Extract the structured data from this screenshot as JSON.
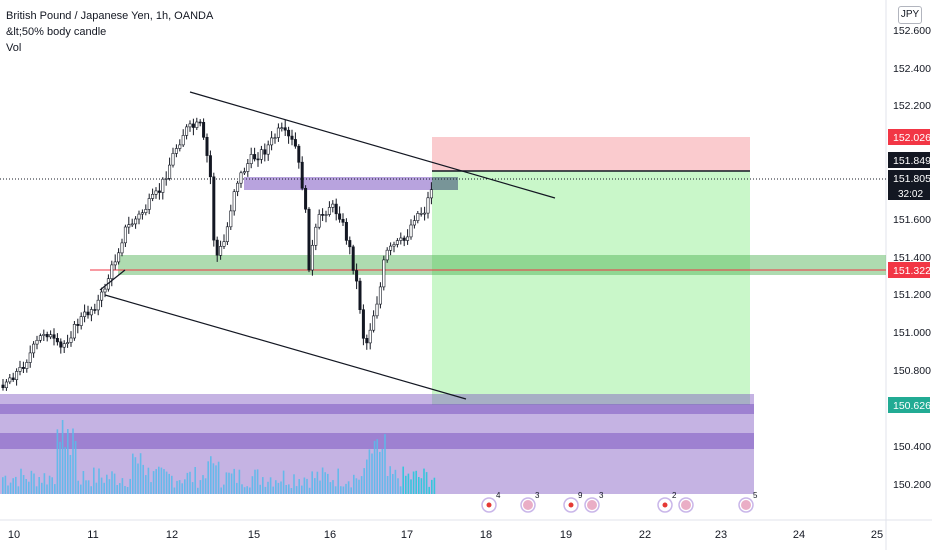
{
  "legend": {
    "symbol": "British Pound / Japanese Yen, 1h, OANDA",
    "indicator": "&lt;50% body candle",
    "volume": "Vol"
  },
  "currency_badge": "JPY",
  "price_axis": {
    "ticks": [
      "152.600",
      "152.400",
      "152.200",
      "151.600",
      "151.400",
      "151.200",
      "151.000",
      "150.800",
      "150.400",
      "150.200"
    ],
    "tags": [
      {
        "label": "152.026",
        "bg": "#f23645"
      },
      {
        "label": "151.849",
        "bg": "#131722"
      },
      {
        "label": "151.805",
        "bg": "#131722"
      },
      {
        "label": "151.322",
        "bg": "#f23645"
      },
      {
        "label": "150.626",
        "bg": "#22ab94"
      }
    ],
    "countdown": "32:02"
  },
  "time_axis": {
    "labels": [
      "10",
      "11",
      "12",
      "15",
      "16",
      "17",
      "18",
      "19",
      "22",
      "23",
      "24",
      "25"
    ]
  },
  "event_markers": [
    {
      "count": "4",
      "icon": "jp-flag-icon"
    },
    {
      "count": "3",
      "icon": "uk-flag-icon"
    },
    {
      "count": "9",
      "icon": "jp-flag-icon"
    },
    {
      "count": "3",
      "icon": "uk-flag-icon"
    },
    {
      "count": "2",
      "icon": "jp-flag-icon"
    },
    {
      "count": "",
      "icon": "uk-flag-icon"
    },
    {
      "count": "5",
      "icon": "uk-flag-icon"
    }
  ],
  "colors": {
    "up": "#ffffff",
    "down": "#131722",
    "stop_zone": "#f8b9bd",
    "target_zone": "#c6f7c6",
    "demand_zone": "#7e57c2",
    "support_zone": "#4caf50",
    "volume": "#5ab9ea",
    "volume_recent": "#26c6da",
    "level_line": "#f23645",
    "entry_line": "#131722"
  }
}
